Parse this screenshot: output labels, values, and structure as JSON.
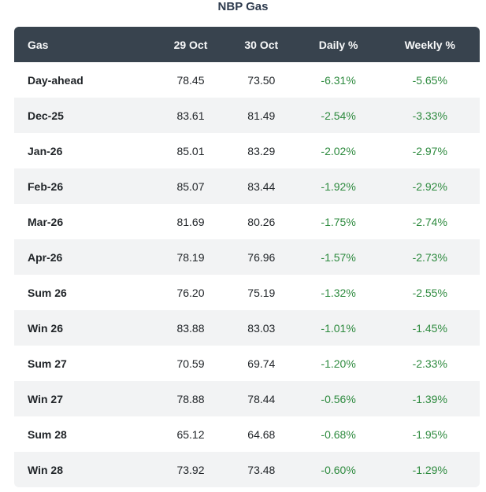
{
  "title": "NBP Gas",
  "colors": {
    "header_bg": "#38434e",
    "header_text": "#f8f9fa",
    "stripe_bg": "#f2f3f4",
    "value_text": "#212529",
    "percent_green": "#2d8a3e",
    "title_color": "#2e3b4e"
  },
  "table": {
    "columns": [
      "Gas",
      "29 Oct",
      "30 Oct",
      "Daily %",
      "Weekly %"
    ],
    "rows": [
      {
        "cells": [
          "Day-ahead",
          "78.45",
          "73.50",
          "-6.31%",
          "-5.65%"
        ]
      },
      {
        "cells": [
          "Dec-25",
          "83.61",
          "81.49",
          "-2.54%",
          "-3.33%"
        ]
      },
      {
        "cells": [
          "Jan-26",
          "85.01",
          "83.29",
          "-2.02%",
          "-2.97%"
        ]
      },
      {
        "cells": [
          "Feb-26",
          "85.07",
          "83.44",
          "-1.92%",
          "-2.92%"
        ]
      },
      {
        "cells": [
          "Mar-26",
          "81.69",
          "80.26",
          "-1.75%",
          "-2.74%"
        ]
      },
      {
        "cells": [
          "Apr-26",
          "78.19",
          "76.96",
          "-1.57%",
          "-2.73%"
        ]
      },
      {
        "cells": [
          "Sum 26",
          "76.20",
          "75.19",
          "-1.32%",
          "-2.55%"
        ]
      },
      {
        "cells": [
          "Win 26",
          "83.88",
          "83.03",
          "-1.01%",
          "-1.45%"
        ]
      },
      {
        "cells": [
          "Sum 27",
          "70.59",
          "69.74",
          "-1.20%",
          "-2.33%"
        ]
      },
      {
        "cells": [
          "Win 27",
          "78.88",
          "78.44",
          "-0.56%",
          "-1.39%"
        ]
      },
      {
        "cells": [
          "Sum 28",
          "65.12",
          "64.68",
          "-0.68%",
          "-1.95%"
        ]
      },
      {
        "cells": [
          "Win 28",
          "73.92",
          "73.48",
          "-0.60%",
          "-1.29%"
        ]
      }
    ]
  },
  "chart_data": {
    "type": "table",
    "title": "NBP Gas",
    "columns": [
      "Gas",
      "29 Oct",
      "30 Oct",
      "Daily %",
      "Weekly %"
    ],
    "categories": [
      "Day-ahead",
      "Dec-25",
      "Jan-26",
      "Feb-26",
      "Mar-26",
      "Apr-26",
      "Sum 26",
      "Win 26",
      "Sum 27",
      "Win 27",
      "Sum 28",
      "Win 28"
    ],
    "series": [
      {
        "name": "29 Oct",
        "values": [
          78.45,
          83.61,
          85.01,
          85.07,
          81.69,
          78.19,
          76.2,
          83.88,
          70.59,
          78.88,
          65.12,
          73.92
        ]
      },
      {
        "name": "30 Oct",
        "values": [
          73.5,
          81.49,
          83.29,
          83.44,
          80.26,
          76.96,
          75.19,
          83.03,
          69.74,
          78.44,
          64.68,
          73.48
        ]
      },
      {
        "name": "Daily %",
        "values": [
          -6.31,
          -2.54,
          -2.02,
          -1.92,
          -1.75,
          -1.57,
          -1.32,
          -1.01,
          -1.2,
          -0.56,
          -0.68,
          -0.6
        ]
      },
      {
        "name": "Weekly %",
        "values": [
          -5.65,
          -3.33,
          -2.97,
          -2.92,
          -2.74,
          -2.73,
          -2.55,
          -1.45,
          -2.33,
          -1.39,
          -1.95,
          -1.29
        ]
      }
    ],
    "layout": {
      "striped_rows": true,
      "header_style": "dark",
      "negative_color": "green"
    }
  }
}
